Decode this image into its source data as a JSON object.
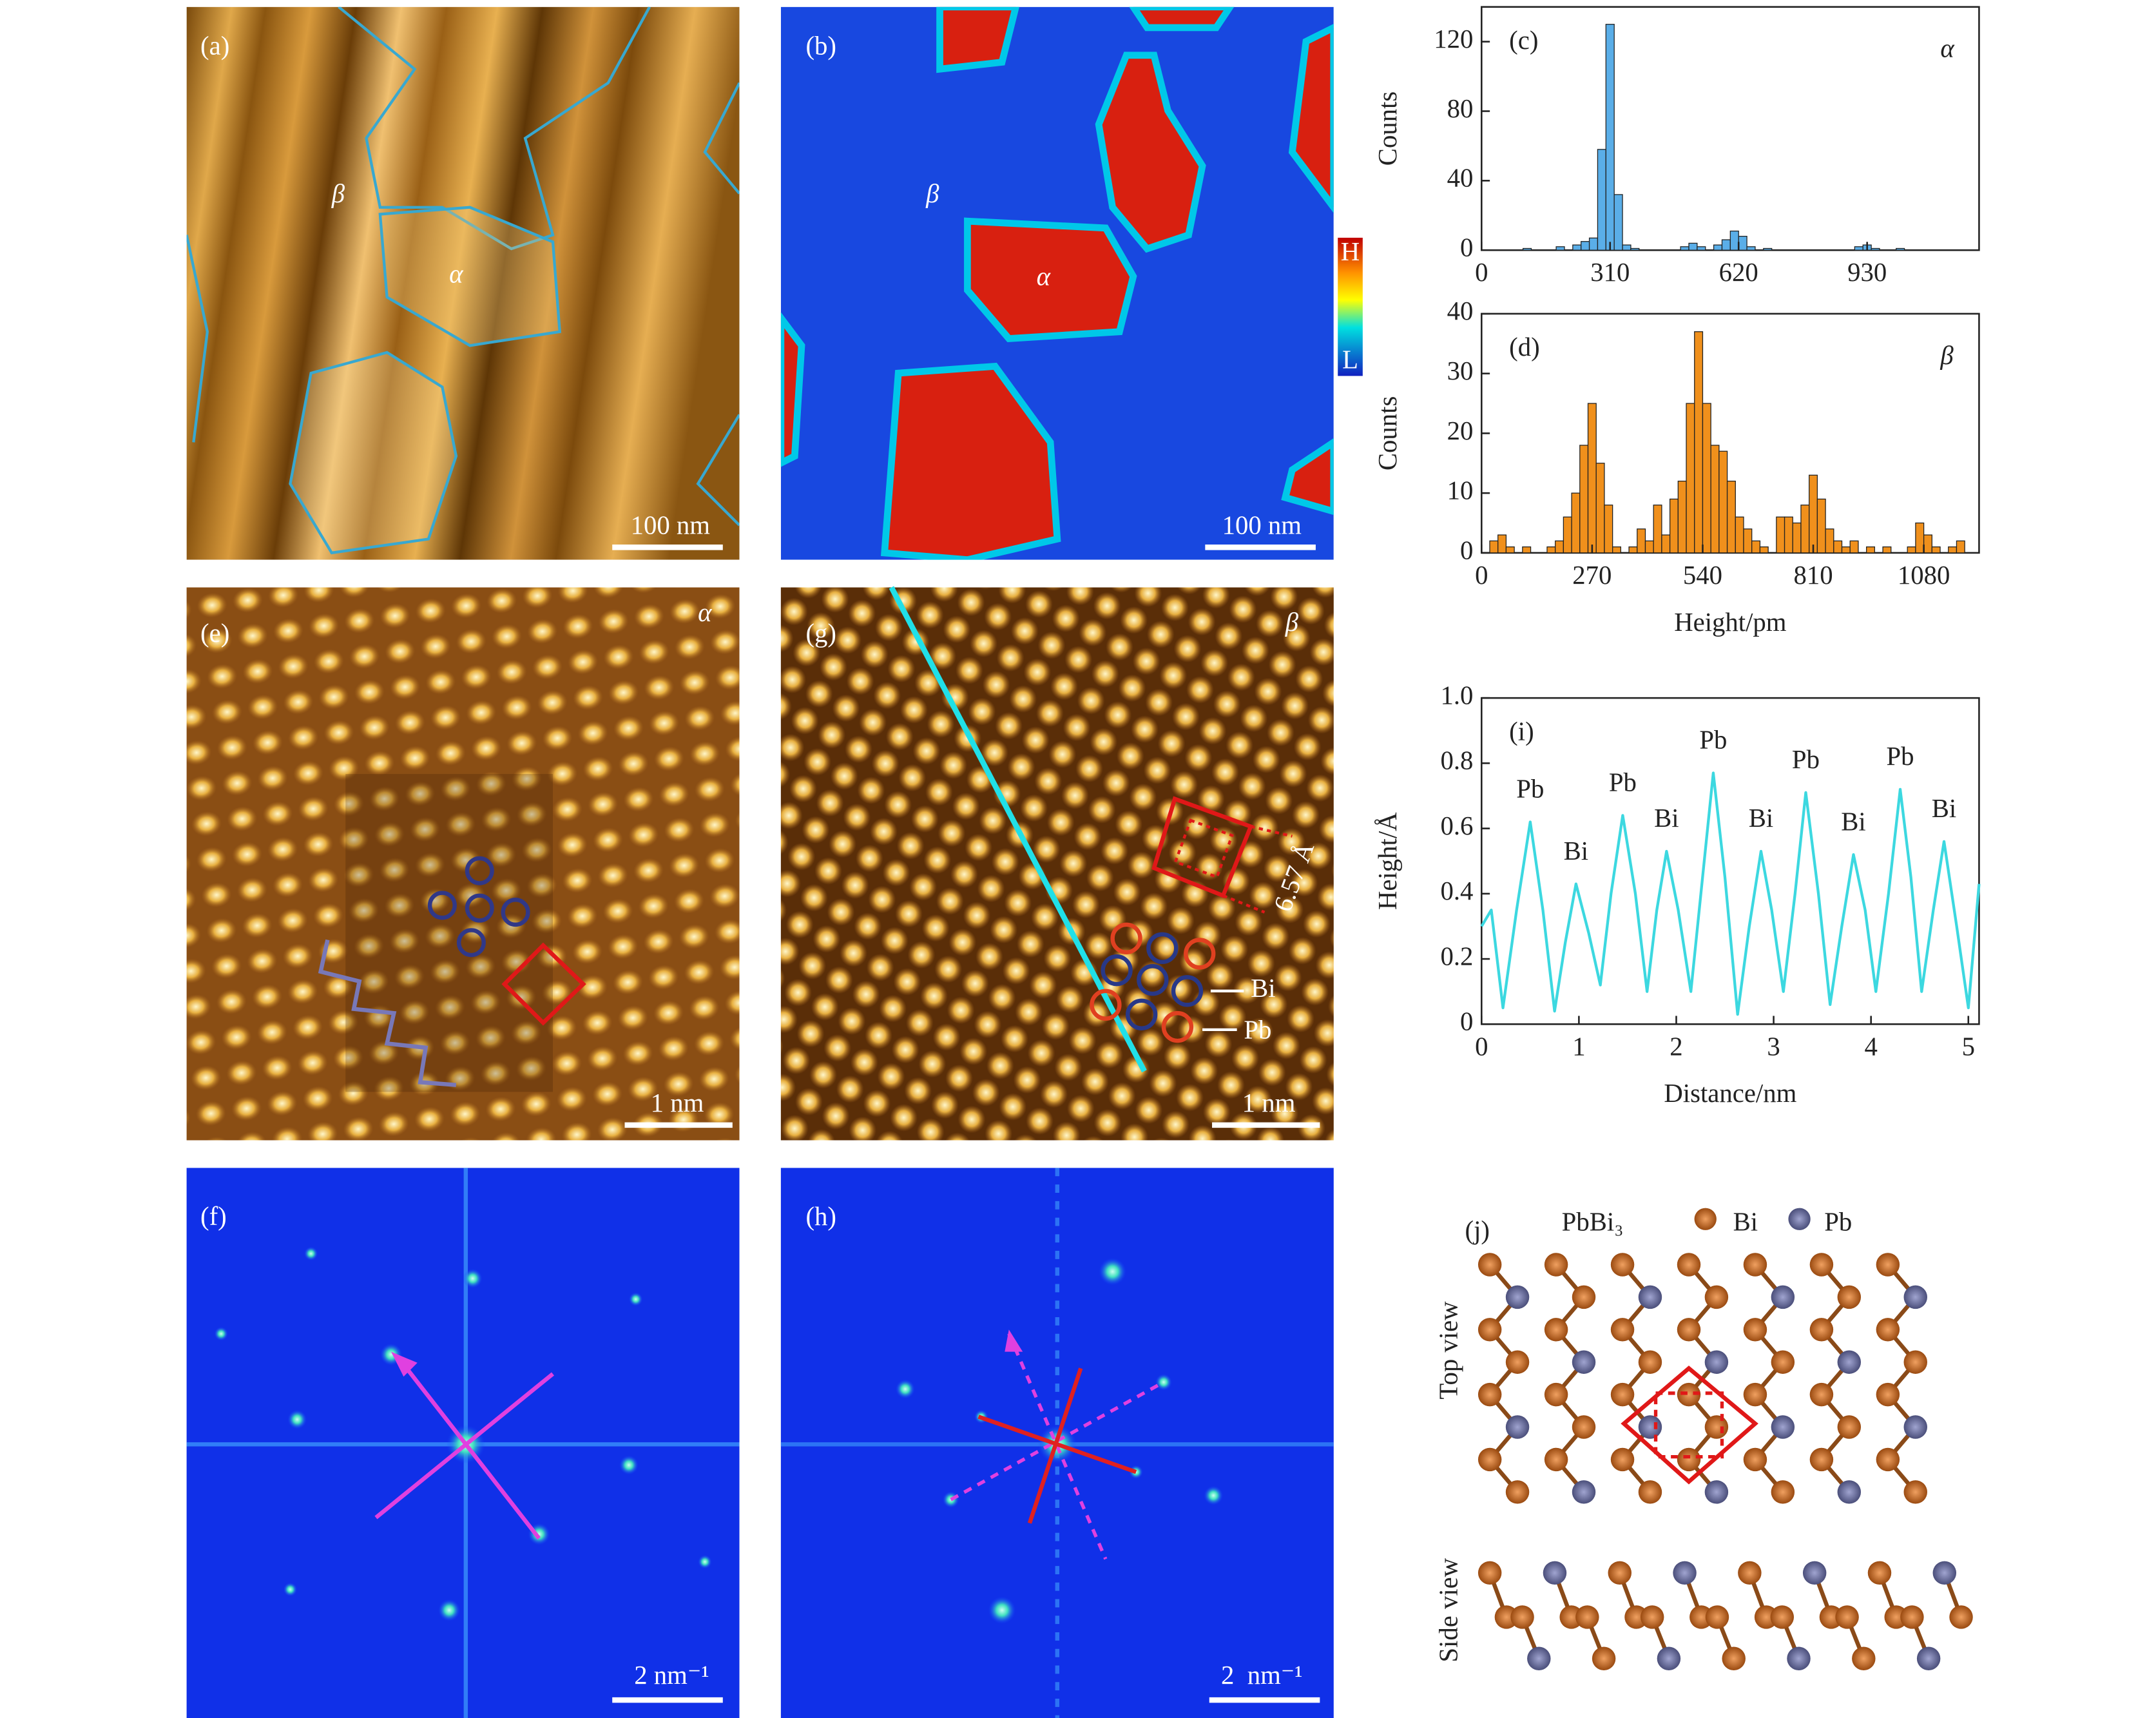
{
  "chart_data": [
    {
      "type": "histogram",
      "label": "(c)",
      "annotation": "α",
      "ylabel": "Counts",
      "color": "#5aaee8",
      "bins": [
        0,
        20,
        40,
        60,
        80,
        100,
        120,
        140,
        160,
        180,
        200,
        220,
        240,
        260,
        280,
        300,
        320,
        340,
        360,
        380,
        400,
        420,
        440,
        460,
        480,
        500,
        520,
        540,
        560,
        580,
        600,
        620,
        640,
        660,
        680,
        700,
        720,
        740,
        760,
        780,
        800,
        820,
        840,
        860,
        880,
        900,
        920,
        940,
        960,
        980,
        1000,
        1020,
        1040,
        1060,
        1080,
        1100,
        1120,
        1140,
        1160,
        1180,
        1200
      ],
      "values": [
        0,
        0,
        0,
        0,
        0,
        1,
        0,
        0,
        0,
        2,
        0,
        3,
        5,
        7,
        58,
        130,
        32,
        3,
        1,
        0,
        0,
        0,
        0,
        0,
        2,
        4,
        2,
        0,
        3,
        6,
        11,
        8,
        2,
        0,
        1,
        0,
        0,
        0,
        0,
        0,
        0,
        0,
        0,
        0,
        0,
        2,
        3,
        1,
        0,
        0,
        1,
        0,
        0,
        0,
        0,
        0,
        0,
        0,
        0,
        0
      ],
      "xlim": [
        0,
        1200
      ],
      "ylim": [
        0,
        140
      ],
      "xticks": [
        0,
        310,
        620,
        930
      ],
      "yticks": [
        0,
        40,
        80,
        120
      ]
    },
    {
      "type": "histogram",
      "label": "(d)",
      "annotation": "β",
      "ylabel": "Counts",
      "xlabel": "Height/pm",
      "color": "#f0901c",
      "bins": [
        0,
        20,
        40,
        60,
        80,
        100,
        120,
        140,
        160,
        180,
        200,
        220,
        240,
        260,
        280,
        300,
        320,
        340,
        360,
        380,
        400,
        420,
        440,
        460,
        480,
        500,
        520,
        540,
        560,
        580,
        600,
        620,
        640,
        660,
        680,
        700,
        720,
        740,
        760,
        780,
        800,
        820,
        840,
        860,
        880,
        900,
        920,
        940,
        960,
        980,
        1000,
        1020,
        1040,
        1060,
        1080,
        1100,
        1120,
        1140,
        1160,
        1180,
        1200
      ],
      "values": [
        0,
        2,
        3,
        1,
        0,
        1,
        0,
        0,
        1,
        2,
        6,
        10,
        18,
        25,
        15,
        8,
        1,
        0,
        1,
        4,
        2,
        8,
        3,
        9,
        12,
        25,
        37,
        25,
        18,
        17,
        12,
        6,
        4,
        2,
        1,
        0,
        6,
        6,
        5,
        8,
        13,
        9,
        4,
        2,
        1,
        2,
        0,
        1,
        0,
        1,
        0,
        0,
        1,
        5,
        3,
        1,
        0,
        1,
        2,
        0
      ],
      "xlim": [
        0,
        1215
      ],
      "ylim": [
        0,
        40
      ],
      "xticks": [
        0,
        270,
        540,
        810,
        1080
      ],
      "yticks": [
        0,
        10,
        20,
        30,
        40
      ]
    },
    {
      "type": "line",
      "label": "(i)",
      "ylabel": "Height/Å",
      "xlabel": "Distance/nm",
      "color": "#3cd8e0",
      "x": [
        0,
        0.1,
        0.22,
        0.36,
        0.5,
        0.63,
        0.75,
        0.86,
        0.97,
        1.1,
        1.22,
        1.33,
        1.45,
        1.58,
        1.7,
        1.8,
        1.9,
        2.02,
        2.15,
        2.27,
        2.38,
        2.5,
        2.63,
        2.75,
        2.87,
        2.98,
        3.1,
        3.22,
        3.33,
        3.46,
        3.58,
        3.7,
        3.82,
        3.94,
        4.05,
        4.18,
        4.3,
        4.41,
        4.52,
        4.64,
        4.75,
        4.88,
        5.0,
        5.11
      ],
      "values": [
        0.3,
        0.35,
        0.05,
        0.35,
        0.62,
        0.35,
        0.04,
        0.25,
        0.43,
        0.28,
        0.12,
        0.4,
        0.64,
        0.4,
        0.1,
        0.35,
        0.53,
        0.35,
        0.1,
        0.45,
        0.77,
        0.45,
        0.03,
        0.3,
        0.53,
        0.35,
        0.1,
        0.4,
        0.71,
        0.4,
        0.06,
        0.3,
        0.52,
        0.35,
        0.1,
        0.4,
        0.72,
        0.45,
        0.1,
        0.35,
        0.56,
        0.3,
        0.05,
        0.43
      ],
      "annotations": [
        "Pb",
        "Bi",
        "Pb",
        "Bi",
        "Pb",
        "Bi",
        "Pb",
        "Bi",
        "Pb",
        "Bi"
      ],
      "xlim": [
        0,
        5.11
      ],
      "ylim": [
        0,
        1
      ],
      "xticks": [
        0,
        1,
        2,
        3,
        4,
        5
      ],
      "yticks": [
        0,
        0.2,
        0.4,
        0.6,
        0.8,
        {
          "value": 1,
          "label": "1.0"
        }
      ]
    }
  ],
  "panels": {
    "a": {
      "label": "(a)",
      "beta": "β",
      "alpha": "α",
      "scale": "100 nm"
    },
    "b": {
      "label": "(b)",
      "beta": "β",
      "alpha": "α",
      "scale": "100 nm",
      "high": "H",
      "low": "L"
    },
    "e": {
      "label": "(e)",
      "alpha": "α",
      "scale": "1 nm"
    },
    "g": {
      "label": "(g)",
      "beta": "β",
      "scale": "1 nm",
      "spacing": "6.57 Å",
      "bi": "Bi",
      "pb": "Pb"
    },
    "f": {
      "label": "(f)",
      "scale": "2 nm⁻¹"
    },
    "h": {
      "label": "(h)",
      "scale": "2  nm⁻¹"
    },
    "j": {
      "label": "(j)",
      "formula": "PbBi₃",
      "bi": "Bi",
      "pb": "Pb",
      "top": "Top view",
      "side": "Side view"
    }
  }
}
